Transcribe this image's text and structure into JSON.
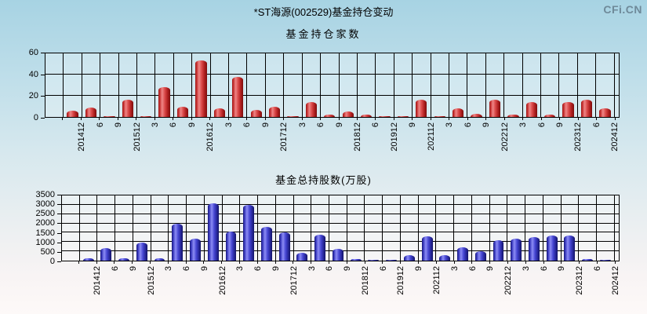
{
  "page": {
    "title": "*ST海源(002529)基金持仓变动",
    "logo": "CFi.CN"
  },
  "colors": {
    "background_top": "#a7d3e3",
    "background_bottom": "#fdf9f8",
    "grid": "#000000",
    "red_bar": "#cc2222",
    "blue_bar": "#3333bb",
    "logo_gray": "#6f8a99"
  },
  "chart_data": [
    {
      "type": "bar",
      "title": "基金持仓家数",
      "xlabel": "",
      "ylabel": "",
      "ylim": [
        0,
        60
      ],
      "ytick_step": 20,
      "grid": true,
      "legend": "none",
      "bar_color_name": "red",
      "categories": [
        "201412",
        "6",
        "9",
        "201512",
        "3",
        "6",
        "9",
        "201612",
        "3",
        "6",
        "9",
        "201712",
        "3",
        "6",
        "9",
        "201812",
        "6",
        "201912",
        "9",
        "202112",
        "3",
        "6",
        "9",
        "202212",
        "3",
        "6",
        "9",
        "202312",
        "6",
        "202412"
      ],
      "values": [
        6,
        9,
        1,
        16,
        1,
        28,
        10,
        53,
        8,
        38,
        7,
        10,
        1,
        14,
        2,
        5,
        2,
        1,
        1,
        16,
        1,
        8,
        3,
        16,
        2,
        14,
        2,
        14,
        16,
        8
      ]
    },
    {
      "type": "bar",
      "title": "基金总持股数(万股)",
      "xlabel": "",
      "ylabel": "",
      "ylim": [
        0,
        3500
      ],
      "ytick_step": 500,
      "grid": true,
      "legend": "none",
      "bar_color_name": "blue",
      "categories": [
        "201412",
        "6",
        "9",
        "201512",
        "3",
        "6",
        "9",
        "201612",
        "3",
        "6",
        "9",
        "201712",
        "3",
        "6",
        "9",
        "201812",
        "6",
        "201912",
        "9",
        "202112",
        "3",
        "6",
        "9",
        "202212",
        "3",
        "6",
        "9",
        "202312",
        "6",
        "202412"
      ],
      "values": [
        140,
        690,
        140,
        990,
        140,
        2000,
        1180,
        3100,
        1550,
        3000,
        1800,
        1500,
        430,
        1400,
        620,
        70,
        60,
        60,
        280,
        1300,
        300,
        700,
        500,
        1100,
        1170,
        1260,
        1330,
        1350,
        100,
        30
      ]
    }
  ]
}
